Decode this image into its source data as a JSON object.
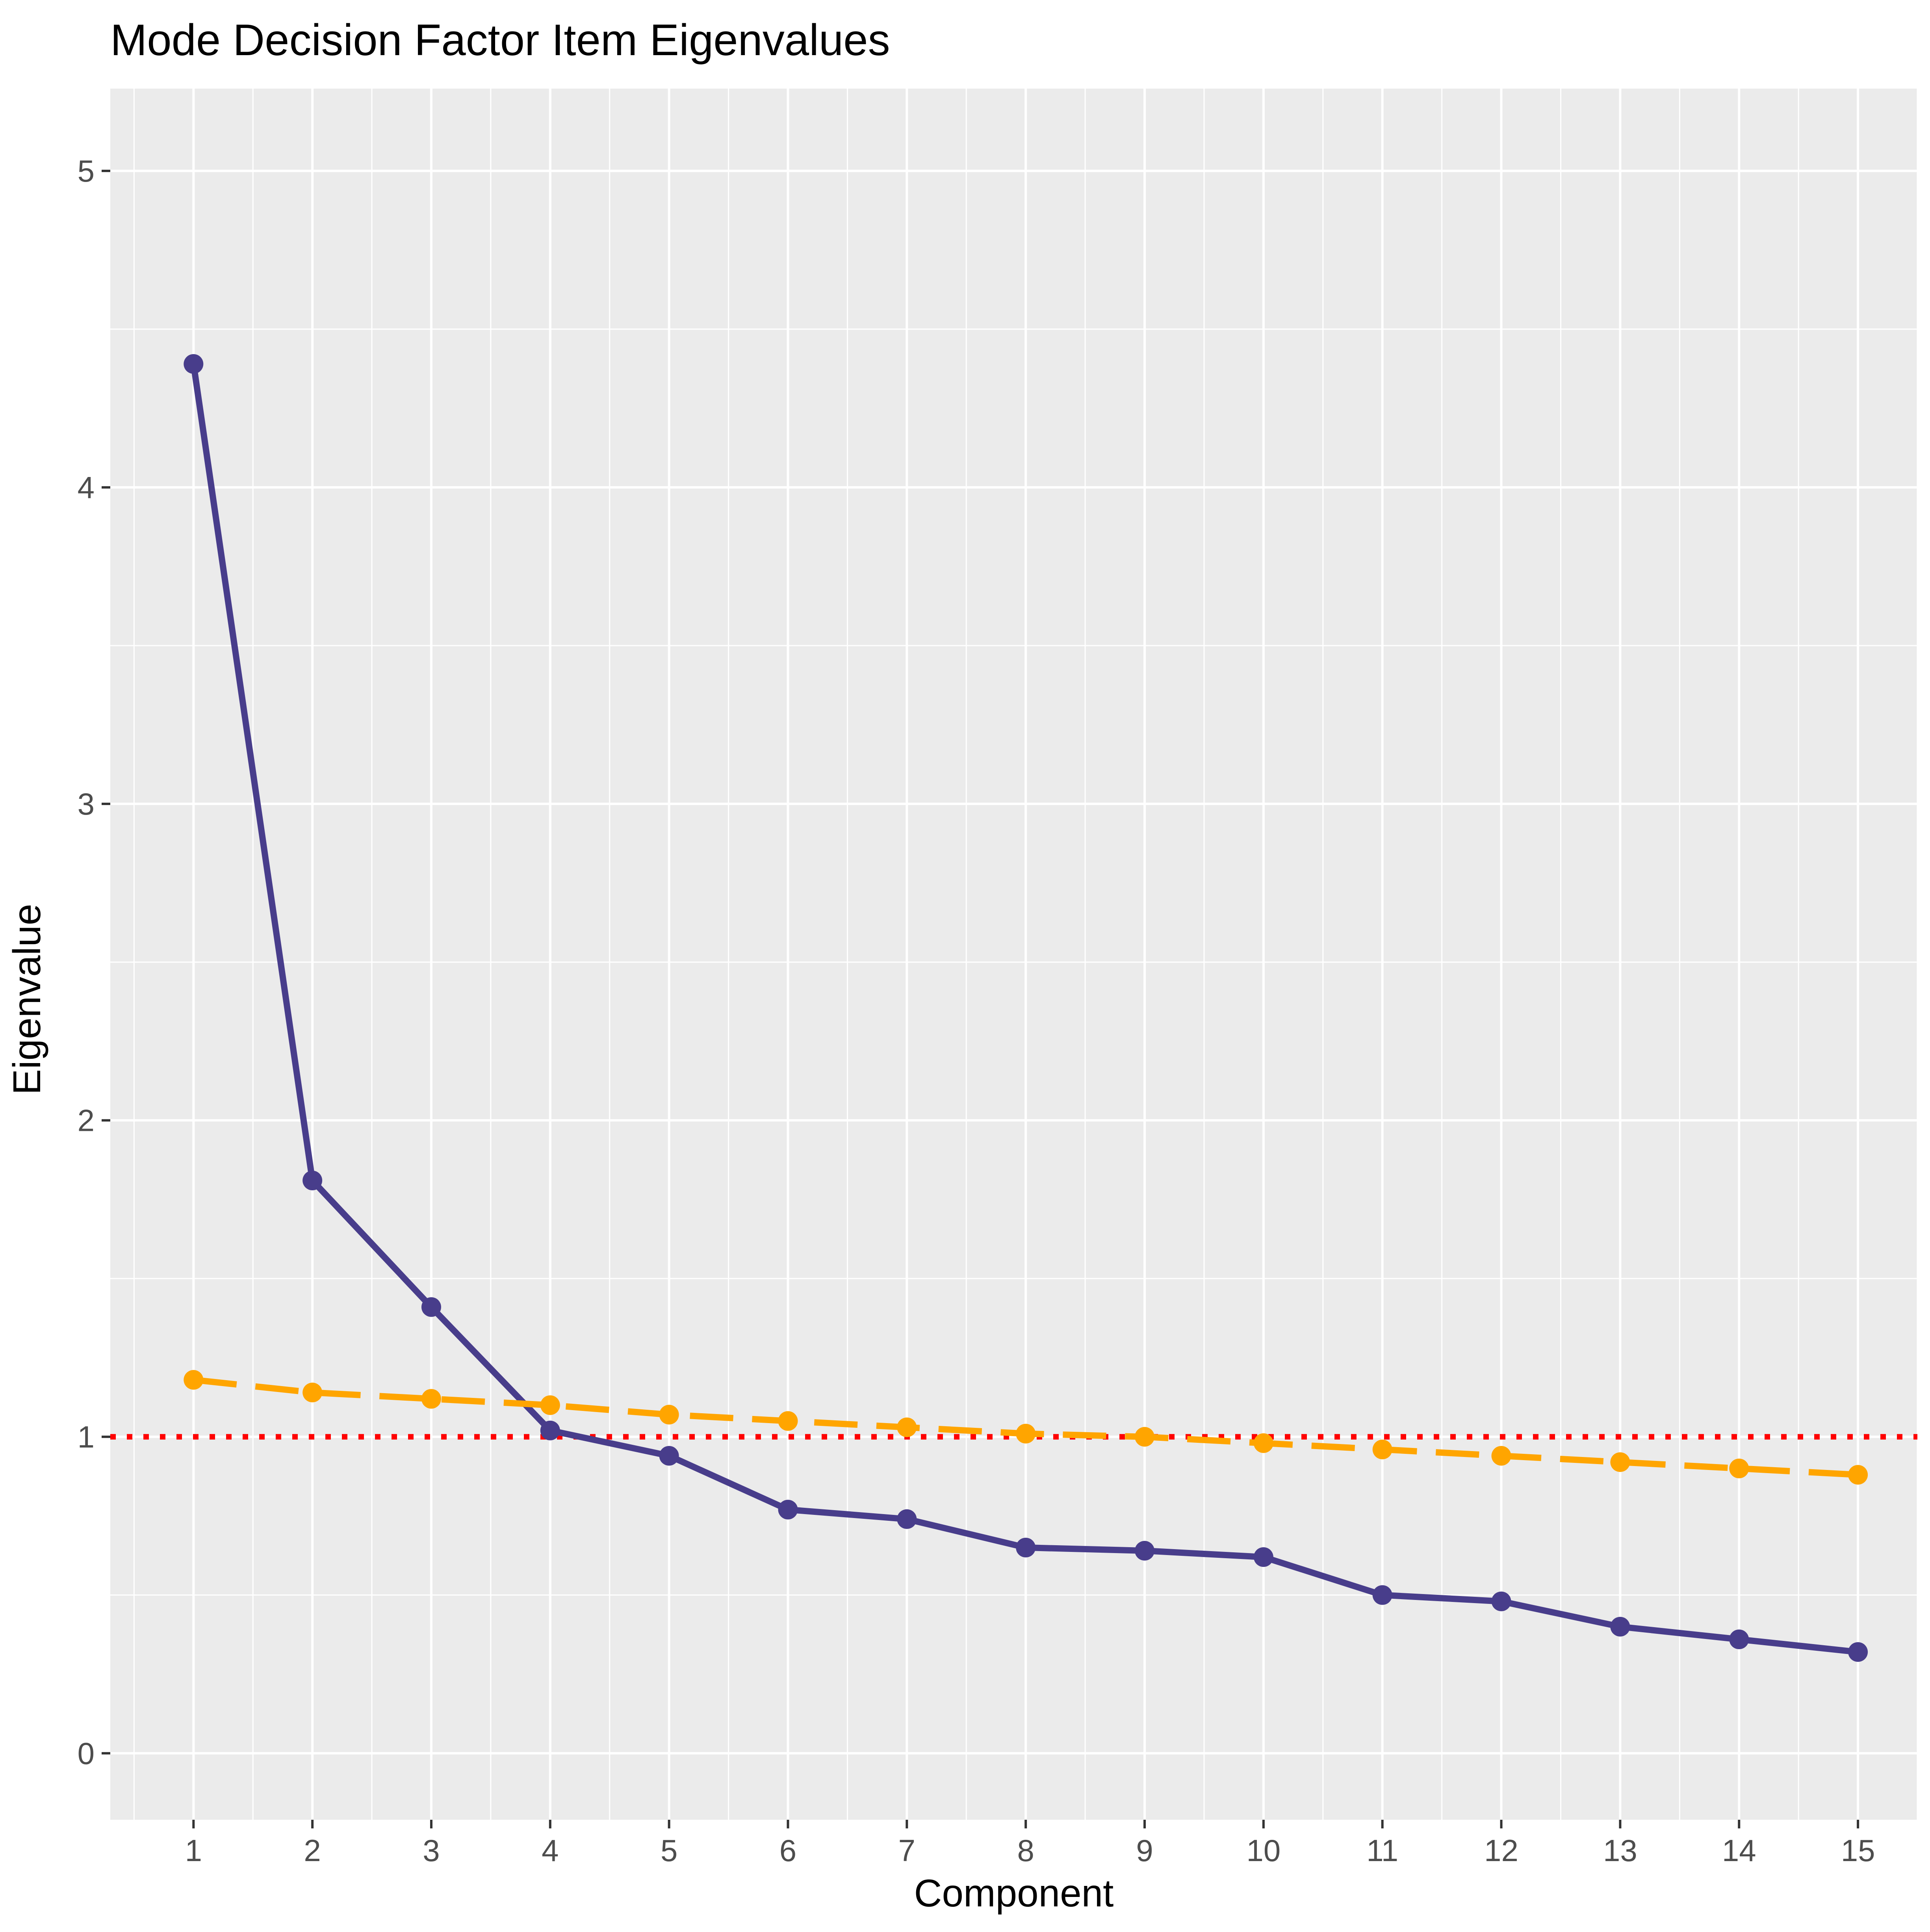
{
  "chart_data": {
    "type": "line",
    "title": "Mode Decision Factor Item Eigenvalues",
    "xlabel": "Component",
    "ylabel": "Eigenvalue",
    "x": [
      1,
      2,
      3,
      4,
      5,
      6,
      7,
      8,
      9,
      10,
      11,
      12,
      13,
      14,
      15
    ],
    "xlim": [
      0.3,
      15.5
    ],
    "ylim": [
      -0.21,
      5.26
    ],
    "xticks": [
      "1",
      "2",
      "3",
      "4",
      "5",
      "6",
      "7",
      "8",
      "9",
      "10",
      "11",
      "12",
      "13",
      "14",
      "15"
    ],
    "yticks": [
      "0",
      "1",
      "2",
      "3",
      "4",
      "5"
    ],
    "grid": true,
    "legend": "none",
    "series": [
      {
        "style": "solid",
        "color": "#483D8B",
        "values": [
          4.39,
          1.81,
          1.41,
          1.02,
          0.94,
          0.77,
          0.74,
          0.65,
          0.64,
          0.62,
          0.5,
          0.48,
          0.4,
          0.36,
          0.32
        ]
      },
      {
        "style": "dashed",
        "color": "#FFA500",
        "values": [
          1.18,
          1.14,
          1.12,
          1.1,
          1.07,
          1.05,
          1.03,
          1.01,
          1.0,
          0.98,
          0.96,
          0.94,
          0.92,
          0.9,
          0.88
        ]
      }
    ],
    "reference_line": {
      "y": 1,
      "style": "dotted",
      "color": "#FF0000"
    },
    "panel_background": "#EBEBEB",
    "gridline_color": "#FFFFFF"
  }
}
